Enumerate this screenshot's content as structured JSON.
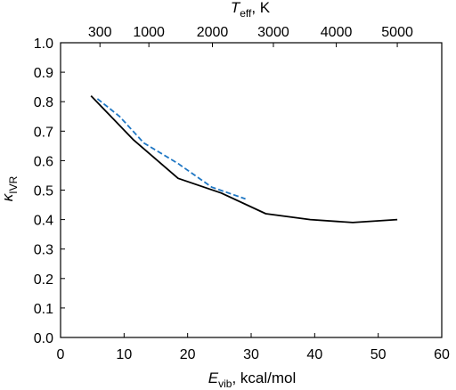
{
  "chart_data": {
    "type": "line",
    "xlabel": {
      "main": "E",
      "sub": "vib",
      "rest": ", kcal/mol"
    },
    "ylabel": {
      "main": "κ",
      "sub": "IVR"
    },
    "top_axis_label": {
      "main": "T",
      "sub": "eff",
      "rest": ", K"
    },
    "xlim": [
      0,
      60
    ],
    "ylim": [
      0.0,
      1.0
    ],
    "x_ticks": [
      0,
      10,
      20,
      30,
      40,
      50,
      60
    ],
    "y_ticks": [
      0.0,
      0.1,
      0.2,
      0.3,
      0.4,
      0.5,
      0.6,
      0.7,
      0.8,
      0.9,
      1.0
    ],
    "y_tick_labels": [
      "0.0",
      "0.1",
      "0.2",
      "0.3",
      "0.4",
      "0.5",
      "0.6",
      "0.7",
      "0.8",
      "0.9",
      "1.0"
    ],
    "top_ticks": [
      {
        "label": "300",
        "x": 6.2
      },
      {
        "label": "1000",
        "x": 13.9
      },
      {
        "label": "2000",
        "x": 23.9
      },
      {
        "label": "3000",
        "x": 33.5
      },
      {
        "label": "4000",
        "x": 43.4
      },
      {
        "label": "5000",
        "x": 53.0
      }
    ],
    "grid": false,
    "series": [
      {
        "style": "solid",
        "color": "#000000",
        "x": [
          4.8,
          11.5,
          18.5,
          25.3,
          32.3,
          39.3,
          46.0,
          53.0
        ],
        "y": [
          0.82,
          0.67,
          0.54,
          0.49,
          0.42,
          0.4,
          0.39,
          0.4
        ]
      },
      {
        "style": "dashed",
        "color": "#1f77c4",
        "x": [
          5.8,
          9.3,
          13.1,
          18.5,
          23.8,
          29.1
        ],
        "y": [
          0.81,
          0.75,
          0.66,
          0.59,
          0.51,
          0.47
        ]
      }
    ]
  }
}
